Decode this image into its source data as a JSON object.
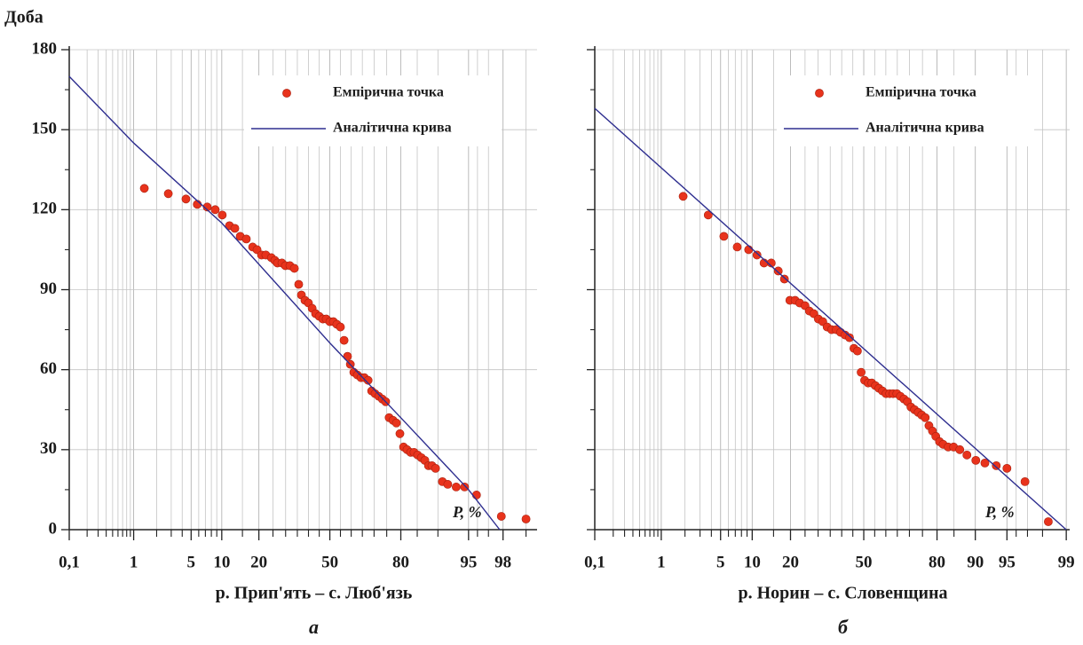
{
  "chart_data": [
    {
      "type": "scatter",
      "ylabel": "Доба",
      "xlabel": "P, %",
      "title": "р. Прип'ять – с. Люб'язь",
      "panel": "а",
      "xscale": "probability",
      "grid": true,
      "legend": "upper right",
      "xlim": [
        0.1,
        99.3
      ],
      "ylim": [
        0,
        180
      ],
      "xticks": [
        {
          "value": 0.1,
          "label": "0,1"
        },
        1,
        5,
        10,
        20,
        50,
        80,
        95,
        98
      ],
      "xminorticks": [
        0.2,
        0.3,
        0.4,
        0.5,
        0.6,
        0.7,
        0.8,
        0.9,
        2,
        3,
        4,
        6,
        7,
        8,
        9,
        15,
        25,
        30,
        35,
        40,
        45,
        55,
        60,
        65,
        70,
        75,
        85,
        90,
        96,
        97,
        99
      ],
      "yticks": [
        0,
        30,
        60,
        90,
        120,
        150,
        180
      ],
      "yminorticks": [
        15,
        45,
        75,
        105,
        135,
        165
      ],
      "series": [
        {
          "name": "Емпірична точка",
          "type": "scatter",
          "color": "#e8331c",
          "x": [
            1.39,
            2.77,
            4.4,
            5.8,
            7.3,
            8.7,
            10.1,
            11.7,
            13.0,
            14.4,
            16.1,
            18.0,
            19.4,
            20.9,
            22.4,
            24.4,
            25.7,
            26.7,
            28.5,
            29.9,
            31.8,
            33.7,
            35.6,
            36.8,
            38.4,
            40.0,
            41.7,
            43.3,
            45.0,
            46.7,
            48.3,
            50,
            51.7,
            53.3,
            55.0,
            56.7,
            58.3,
            59.6,
            61.2,
            62.8,
            64.4,
            65.9,
            67.5,
            69.0,
            70.4,
            71.9,
            73.3,
            74.6,
            75.9,
            77.3,
            78.5,
            79.7,
            80.9,
            82.0,
            83.1,
            84.1,
            85.1,
            86.1,
            87.0,
            87.9,
            88.7,
            89.5,
            90.9,
            91.9,
            93.3,
            94.5,
            95.9,
            97.9,
            99.0
          ],
          "values": [
            128,
            126,
            124,
            122,
            121,
            120,
            118,
            114,
            113,
            110,
            109,
            106,
            105,
            103,
            103,
            102,
            101,
            100,
            100,
            99,
            99,
            98,
            92,
            88,
            86,
            85,
            83,
            81,
            80,
            79,
            79,
            78,
            78,
            77,
            76,
            71,
            65,
            62,
            59,
            58,
            57,
            57,
            56,
            52,
            51,
            50,
            49,
            48,
            42,
            41,
            40,
            36,
            31,
            30,
            29,
            29,
            28,
            27,
            26,
            24,
            24,
            23,
            18,
            17,
            16,
            16,
            13,
            5,
            4
          ]
        },
        {
          "name": "Аналітична крива",
          "type": "line",
          "color": "#2e2e8f",
          "x": [
            0.1,
            1,
            10,
            50,
            80,
            95,
            97.8
          ],
          "values": [
            170,
            145,
            115,
            70,
            42,
            15,
            0
          ]
        }
      ]
    },
    {
      "type": "scatter",
      "xlabel": "P, %",
      "title": "р. Норин – с. Словенщина",
      "panel": "б",
      "xscale": "probability",
      "grid": true,
      "legend": "upper right",
      "xlim": [
        0.1,
        99.1
      ],
      "ylim": [
        0,
        180
      ],
      "xticks": [
        {
          "value": 0.1,
          "label": "0,1"
        },
        1,
        5,
        10,
        20,
        50,
        80,
        90,
        95,
        99
      ],
      "xminorticks": [
        0.2,
        0.3,
        0.4,
        0.5,
        0.6,
        0.7,
        0.8,
        0.9,
        2,
        3,
        4,
        6,
        7,
        8,
        9,
        15,
        25,
        30,
        35,
        40,
        45,
        55,
        60,
        65,
        70,
        75,
        85,
        96,
        97,
        98
      ],
      "yticks": [
        0,
        30,
        60,
        90,
        120,
        150,
        180
      ],
      "yminorticks": [
        15,
        45,
        75,
        105,
        135,
        165
      ],
      "series": [
        {
          "name": "Емпірична точка",
          "type": "scatter",
          "color": "#e8331c",
          "x": [
            1.9,
            3.7,
            5.4,
            7.3,
            9.3,
            11.0,
            12.6,
            14.4,
            16.3,
            18.1,
            19.8,
            21.5,
            23.1,
            25.0,
            26.6,
            28.3,
            30.1,
            31.9,
            33.7,
            35.6,
            37.6,
            39.5,
            41.5,
            43.5,
            45.5,
            47.1,
            48.8,
            50.4,
            52.0,
            53.7,
            55.3,
            56.9,
            58.5,
            60.1,
            61.7,
            63.2,
            64.8,
            66.3,
            67.8,
            69.2,
            70.6,
            72.0,
            73.4,
            74.7,
            76.0,
            77.3,
            78.5,
            79.6,
            80.8,
            81.9,
            83.4,
            84.9,
            86.5,
            88.2,
            90.1,
            91.8,
            93.6,
            95.0,
            96.8,
            98.3
          ],
          "values": [
            125,
            118,
            110,
            106,
            105,
            103,
            100,
            100,
            97,
            94,
            86,
            86,
            85,
            84,
            82,
            81,
            79,
            78,
            76,
            75,
            75,
            74,
            73,
            72,
            68,
            67,
            59,
            56,
            55,
            55,
            54,
            53,
            52,
            51,
            51,
            51,
            51,
            50,
            49,
            48,
            46,
            45,
            44,
            43,
            42,
            39,
            37,
            35,
            33,
            32,
            31,
            31,
            30,
            28,
            26,
            25,
            24,
            23,
            18,
            3
          ]
        },
        {
          "name": "Аналітична крива",
          "type": "line",
          "color": "#2e2e8f",
          "x": [
            0.1,
            99
          ],
          "values": [
            158,
            0
          ]
        }
      ]
    }
  ]
}
